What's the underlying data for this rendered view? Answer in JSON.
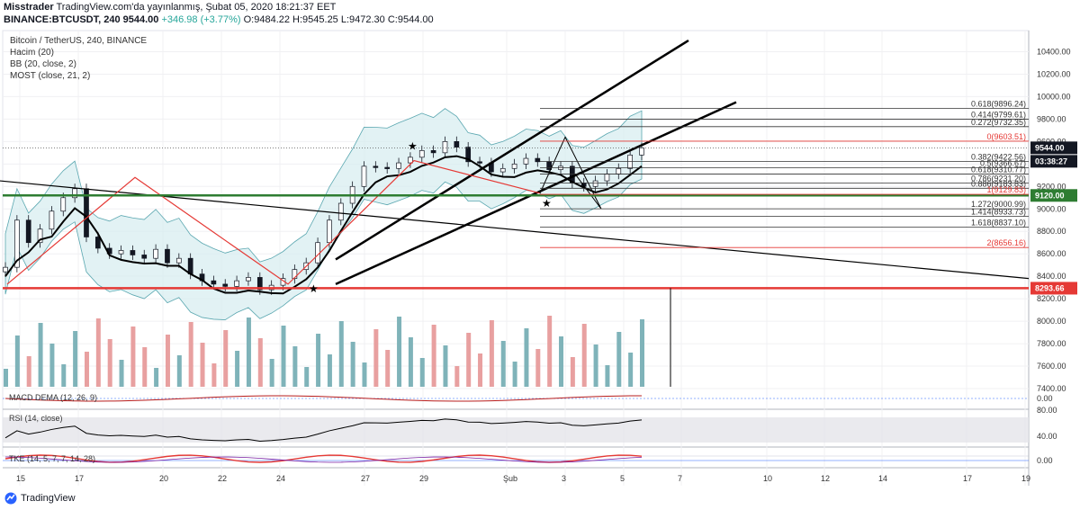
{
  "header": {
    "line1_user": "Misstrader",
    "line1_rest": "TradingView.com'da yayınlanmış, Şubat 05, 2020 18:21:37 EET",
    "symbol": "BINANCE:BTCUSDT, 240",
    "last": "9544.00",
    "change": "+346.98 (+3.77%)",
    "ohlc": "O:9484.22 H:9545.25 L:9472.30 C:9544.00"
  },
  "legend": {
    "title": "Bitcoin / TetherUS, 240, BINANCE",
    "vol": "Hacim (20)",
    "bb": "BB (20, close, 2)",
    "most": "MOST (close, 21, 2)"
  },
  "subpanes": {
    "macd": "MACD DEMA (12, 26, 9)",
    "rsi": "RSI (14, close)",
    "tke": "TKE (14, 5, 7, 7, 14, 28)"
  },
  "brand": "TradingView",
  "colors": {
    "up": "#26a69a",
    "down": "#ef5350",
    "red_line": "#e53935",
    "green_line": "#2e7d32",
    "bb": "#5aa7b0",
    "bb_fill": "#d6ecf0",
    "vol_up": "#7fb3b9",
    "vol_down": "#e8a0a0"
  },
  "chart_data": {
    "type": "candlestick",
    "title": "Bitcoin / TetherUS, 240, BINANCE",
    "price_axis": {
      "range": [
        7400,
        10500
      ],
      "ticks": [
        "10400.00",
        "10200.00",
        "10000.00",
        "9800.00",
        "9600.00",
        "9400.00",
        "9200.00",
        "9000.00",
        "8800.00",
        "8600.00",
        "8400.00",
        "8200.00",
        "8000.00",
        "7800.00",
        "7600.00",
        "7400.00"
      ]
    },
    "x_labels": [
      "15",
      "17",
      "20",
      "22",
      "24",
      "27",
      "29",
      "Şub",
      "3",
      "5",
      "7",
      "10",
      "12",
      "14",
      "17",
      "19"
    ],
    "price_markers": [
      {
        "label": "9544.00",
        "kind": "last",
        "color": "#131722"
      },
      {
        "label": "03:38:27",
        "kind": "countdown",
        "color": "#131722"
      },
      {
        "label": "9120.00",
        "kind": "hline",
        "color": "#2e7d32"
      },
      {
        "label": "8293.66",
        "kind": "hline",
        "color": "#e53935"
      }
    ],
    "fib_levels": [
      {
        "label": "0.618(9896.24)",
        "price": 9896.24,
        "color": "#333333"
      },
      {
        "label": "0.414(9799.61)",
        "price": 9799.61,
        "color": "#333333"
      },
      {
        "label": "0.272(9732.35)",
        "price": 9732.35,
        "color": "#333333"
      },
      {
        "label": "0(9603.51)",
        "price": 9603.51,
        "color": "#e53935"
      },
      {
        "label": "0.382(9422.56)",
        "price": 9422.56,
        "color": "#333333"
      },
      {
        "label": "0.5(9366.67)",
        "price": 9366.67,
        "color": "#333333"
      },
      {
        "label": "0.618(9310.77)",
        "price": 9310.77,
        "color": "#333333"
      },
      {
        "label": "0.786(9231.20)",
        "price": 9231.2,
        "color": "#333333"
      },
      {
        "label": "0.886(9183.83)",
        "price": 9183.83,
        "color": "#333333"
      },
      {
        "label": "1(9129.83)",
        "price": 9129.83,
        "color": "#e53935"
      },
      {
        "label": "1.272(9000.99)",
        "price": 9000.99,
        "color": "#333333"
      },
      {
        "label": "1.414(8933.73)",
        "price": 8933.73,
        "color": "#333333"
      },
      {
        "label": "1.618(8837.10)",
        "price": 8837.1,
        "color": "#333333"
      },
      {
        "label": "2(8656.16)",
        "price": 8656.16,
        "color": "#e53935"
      }
    ],
    "close_path": [
      8480,
      8900,
      8700,
      8820,
      8980,
      9100,
      9180,
      8750,
      8650,
      8600,
      8630,
      8590,
      8560,
      8640,
      8520,
      8560,
      8420,
      8360,
      8330,
      8310,
      8360,
      8390,
      8280,
      8320,
      8380,
      8460,
      8520,
      8700,
      8900,
      9050,
      9200,
      9380,
      9370,
      9360,
      9410,
      9460,
      9520,
      9500,
      9600,
      9550,
      9420,
      9410,
      9330,
      9360,
      9400,
      9450,
      9420,
      9350,
      9380,
      9230,
      9200,
      9250,
      9310,
      9360,
      9480,
      9544
    ],
    "rsi_axis": {
      "ticks": [
        "80.00",
        "40.00"
      ]
    },
    "macd_axis": {
      "ticks": [
        "0.00"
      ]
    },
    "tke_axis": {
      "ticks": [
        "0.00"
      ]
    }
  }
}
